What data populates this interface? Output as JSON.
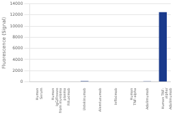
{
  "chart_data": {
    "type": "bar",
    "ylabel": "Fluorescence (Signal)",
    "categories": [
      "Human\nSerum",
      "Human\nIgG/Freeze\nfrom myeloma\nplasma",
      "Rituximab",
      "Ustekinumab",
      "Alemtuzumab",
      "Infliximab",
      "Human\nTNF-alpha",
      "Adalimumab",
      "Human TNF-\nalpha/\nAdalimumab"
    ],
    "values": [
      50,
      60,
      50,
      120,
      55,
      55,
      55,
      80,
      12500
    ],
    "color": "#1a3a8c",
    "ylim": [
      0,
      14000
    ],
    "yticks": [
      0,
      2000,
      4000,
      6000,
      8000,
      10000,
      12000,
      14000
    ],
    "grid": true
  }
}
